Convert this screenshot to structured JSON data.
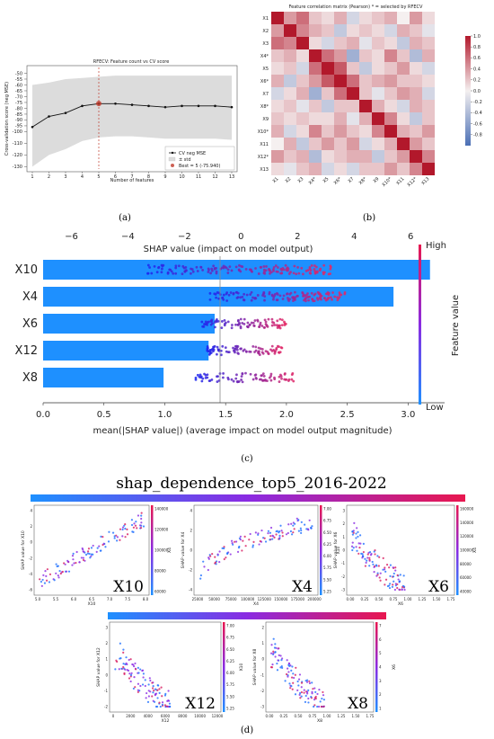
{
  "panel_labels": {
    "a": "(a)",
    "b": "(b)",
    "c": "(c)",
    "d": "(d)"
  },
  "colors": {
    "red": "#c0392b",
    "blue": "#1e90ff",
    "magenta": "#cc1a8a",
    "purple": "#8a2be2",
    "grey_band": "#dcdcdc"
  },
  "chart_data": [
    {
      "panel": "a",
      "type": "line",
      "title": "RFECV: Feature count vs CV score",
      "xlabel": "Number of features",
      "ylabel": "Cross-validation score (neg MSE)",
      "x": [
        1,
        2,
        3,
        4,
        5,
        6,
        7,
        8,
        9,
        10,
        11,
        12,
        13
      ],
      "series": [
        {
          "name": "CV neg MSE",
          "values": [
            -96,
            -87,
            -84,
            -78,
            -76,
            -76,
            -77,
            -78,
            -79,
            -78,
            -78,
            -78,
            -79
          ]
        }
      ],
      "band": {
        "name": "± std",
        "upper": [
          -60,
          -58,
          -55,
          -54,
          -53,
          -52,
          -52,
          -52,
          -52,
          -52,
          -52,
          -52,
          -52
        ],
        "lower": [
          -130,
          -120,
          -115,
          -108,
          -105,
          -104,
          -104,
          -105,
          -106,
          -106,
          -106,
          -106,
          -107
        ]
      },
      "best": {
        "label": "Best = 5 (-75.940)",
        "x": 5,
        "y": -75.94
      },
      "yticks": [
        -130,
        -120,
        -110,
        -100,
        -95,
        -90,
        -85,
        -80,
        -75,
        -70,
        -65,
        -60,
        -55,
        -50
      ],
      "ylim": [
        -132,
        -45
      ],
      "legend_items": [
        "CV neg MSE",
        "± std",
        "Best = 5 (-75.940)"
      ]
    },
    {
      "panel": "b",
      "type": "heatmap",
      "title": "Feature correlation matrix (Pearson) * = selected by RFECV",
      "labels_y": [
        "X1",
        "X2",
        "X3",
        "X4*",
        "X5",
        "X6*",
        "X7",
        "X8*",
        "X9",
        "X10*",
        "X11",
        "X12*",
        "X13"
      ],
      "labels_x": [
        "X1",
        "X2",
        "X3",
        "X4*",
        "X5",
        "X6*",
        "X7",
        "X8*",
        "X9",
        "X10*",
        "X11",
        "X12*",
        "X13"
      ],
      "colorbar_ticks": [
        "1.0",
        "0.8",
        "0.6",
        "0.4",
        "0.2",
        "0.0",
        "-0.2",
        "-0.4",
        "-0.6",
        "-0.8"
      ],
      "colorbar_range": [
        -1,
        1
      ],
      "matrix": [
        [
          1.0,
          0.4,
          0.6,
          0.2,
          0.1,
          0.3,
          -0.2,
          0.1,
          0.2,
          0.3,
          0.0,
          0.4,
          0.1
        ],
        [
          0.4,
          1.0,
          0.5,
          0.3,
          0.2,
          -0.3,
          0.1,
          0.2,
          0.1,
          -0.2,
          0.3,
          0.2,
          -0.1
        ],
        [
          0.6,
          0.5,
          1.0,
          0.1,
          -0.2,
          0.2,
          0.3,
          -0.1,
          0.2,
          0.1,
          -0.3,
          0.3,
          0.2
        ],
        [
          0.2,
          0.3,
          0.1,
          1.0,
          0.6,
          0.4,
          -0.5,
          0.2,
          0.1,
          0.5,
          0.2,
          -0.4,
          0.3
        ],
        [
          0.1,
          0.2,
          -0.2,
          0.6,
          1.0,
          0.7,
          0.2,
          -0.3,
          0.1,
          0.2,
          0.4,
          0.1,
          -0.2
        ],
        [
          0.3,
          -0.3,
          0.2,
          0.4,
          0.7,
          1.0,
          0.6,
          0.2,
          0.3,
          0.4,
          0.2,
          0.2,
          0.1
        ],
        [
          -0.2,
          0.1,
          0.3,
          -0.5,
          0.2,
          0.6,
          1.0,
          0.2,
          -0.1,
          0.2,
          0.4,
          0.3,
          -0.2
        ],
        [
          0.1,
          0.2,
          -0.1,
          0.2,
          -0.3,
          0.2,
          0.2,
          1.0,
          0.3,
          0.1,
          -0.2,
          0.3,
          0.2
        ],
        [
          0.2,
          0.1,
          0.2,
          0.1,
          0.1,
          0.3,
          -0.1,
          0.3,
          1.0,
          0.5,
          0.1,
          -0.3,
          0.2
        ],
        [
          0.3,
          -0.2,
          0.1,
          0.5,
          0.2,
          0.4,
          0.2,
          0.1,
          0.5,
          1.0,
          0.3,
          0.2,
          0.4
        ],
        [
          0.0,
          0.3,
          -0.3,
          0.2,
          0.4,
          0.2,
          0.4,
          -0.2,
          0.1,
          0.3,
          1.0,
          0.4,
          0.2
        ],
        [
          0.4,
          0.2,
          0.3,
          -0.4,
          0.1,
          0.2,
          0.3,
          0.3,
          -0.3,
          0.2,
          0.4,
          1.0,
          0.5
        ],
        [
          0.1,
          -0.1,
          0.2,
          0.3,
          -0.2,
          0.1,
          -0.2,
          0.2,
          0.2,
          0.4,
          0.2,
          0.5,
          1.0
        ]
      ]
    },
    {
      "panel": "c",
      "type": "bar",
      "title": "SHAP value (impact on model output)",
      "xlabel": "mean(|SHAP value|) (average impact on model output magnitude)",
      "categories": [
        "X10",
        "X4",
        "X6",
        "X12",
        "X8"
      ],
      "values": [
        3.18,
        2.88,
        1.41,
        1.36,
        0.99
      ],
      "xlim": [
        0,
        3.3
      ],
      "xticks": [
        "0.0",
        "0.5",
        "1.0",
        "1.5",
        "2.0",
        "2.5",
        "3.0"
      ],
      "top_axis": {
        "ticks": [
          "−6",
          "−4",
          "−2",
          "0",
          "2",
          "4",
          "6"
        ],
        "range": [
          -7,
          7.2
        ]
      },
      "colorbar_label": "Feature value",
      "colorbar_high": "High",
      "colorbar_low": "Low"
    },
    {
      "panel": "d",
      "type": "scatter",
      "title": "shap_dependence_top5_2016-2022",
      "subplots": [
        {
          "feature": "X10",
          "xlabel": "X10",
          "ylabel": "SHAP value for X10",
          "xticks": [
            "5.0",
            "5.5",
            "6.0",
            "6.5",
            "7.0",
            "7.5",
            "8.0"
          ],
          "yticks": [
            "4",
            "2",
            "0",
            "-2",
            "-4",
            "-6"
          ],
          "cbticks": [
            "140000",
            "120000",
            "100000",
            "80000",
            "60000"
          ],
          "cblabel": "X4"
        },
        {
          "feature": "X4",
          "xlabel": "X4",
          "ylabel": "SHAP value for X4",
          "xticks": [
            "25000",
            "50000",
            "75000",
            "100000",
            "125000",
            "150000",
            "175000",
            "200000"
          ],
          "yticks": [
            "4",
            "2",
            "0",
            "-2",
            "-4"
          ],
          "cbticks": [
            "7.00",
            "6.75",
            "6.50",
            "6.25",
            "6.00",
            "5.75",
            "5.50",
            "5.25"
          ],
          "cblabel": "X10"
        },
        {
          "feature": "X6",
          "xlabel": "X6",
          "ylabel": "SHAP value for X6",
          "xticks": [
            "0.00",
            "0.25",
            "0.50",
            "0.75",
            "1.00",
            "1.25",
            "1.50",
            "1.75"
          ],
          "yticks": [
            "3",
            "2",
            "1",
            "0",
            "-1",
            "-2",
            "-3"
          ],
          "cbticks": [
            "160000",
            "140000",
            "120000",
            "100000",
            "80000",
            "60000",
            "40000"
          ],
          "cblabel": "X4"
        },
        {
          "feature": "X12",
          "xlabel": "X12",
          "ylabel": "SHAP value for X12",
          "xticks": [
            "0",
            "2000",
            "4000",
            "6000",
            "8000",
            "10000",
            "12000"
          ],
          "yticks": [
            "3",
            "2",
            "1",
            "0",
            "-1",
            "-2"
          ],
          "cbticks": [
            "7.00",
            "6.75",
            "6.50",
            "6.25",
            "6.00",
            "5.75",
            "5.50",
            "5.25"
          ],
          "cblabel": "X10"
        },
        {
          "feature": "X8",
          "xlabel": "X8",
          "ylabel": "SHAP value for X8",
          "xticks": [
            "0.00",
            "0.25",
            "0.50",
            "0.75",
            "1.00",
            "1.25",
            "1.50",
            "1.75"
          ],
          "yticks": [
            "2",
            "1",
            "0",
            "-1",
            "-2",
            "-3"
          ],
          "cbticks": [
            "7",
            "6",
            "5",
            "4",
            "3",
            "2",
            "1"
          ],
          "cblabel": "X6"
        }
      ]
    }
  ]
}
